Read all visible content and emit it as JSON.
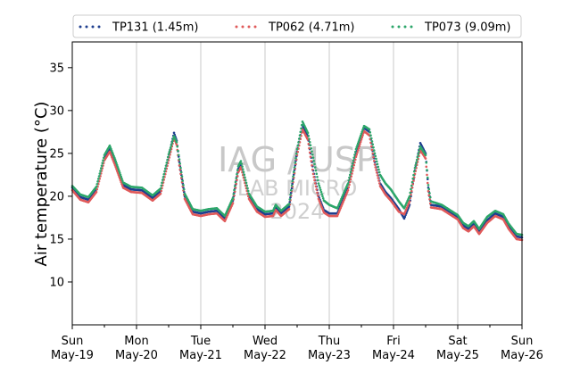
{
  "chart_data": {
    "type": "scatter",
    "title": "",
    "xlabel": "",
    "ylabel": "Air temperature (°C)",
    "ylim": [
      5,
      38
    ],
    "xlim": [
      "2024-05-19",
      "2024-05-26"
    ],
    "grid": "vertical at day boundaries",
    "legend_placement": "top",
    "watermark": [
      "IAG / USP",
      "LAB MICRO",
      "2024"
    ],
    "x_ticks": [
      {
        "date": "2024-05-19",
        "day": "Sun",
        "date_label": "May-19"
      },
      {
        "date": "2024-05-20",
        "day": "Mon",
        "date_label": "May-20"
      },
      {
        "date": "2024-05-21",
        "day": "Tue",
        "date_label": "May-21"
      },
      {
        "date": "2024-05-22",
        "day": "Wed",
        "date_label": "May-22"
      },
      {
        "date": "2024-05-23",
        "day": "Thu",
        "date_label": "May-23"
      },
      {
        "date": "2024-05-24",
        "day": "Fri",
        "date_label": "May-24"
      },
      {
        "date": "2024-05-25",
        "day": "Sat",
        "date_label": "May-25"
      },
      {
        "date": "2024-05-26",
        "day": "Sun",
        "date_label": "May-26"
      }
    ],
    "y_ticks": [
      10,
      15,
      20,
      25,
      30,
      35
    ],
    "series": [
      {
        "name": "TP131 (1.45m)",
        "color": "#1f3f8f",
        "points": [
          [
            "2024-05-19 00:00",
            21.0
          ],
          [
            "2024-05-19 03:00",
            19.9
          ],
          [
            "2024-05-19 06:00",
            19.6
          ],
          [
            "2024-05-19 09:00",
            20.8
          ],
          [
            "2024-05-19 12:00",
            24.5
          ],
          [
            "2024-05-19 14:00",
            25.6
          ],
          [
            "2024-05-19 16:00",
            24.0
          ],
          [
            "2024-05-19 19:00",
            21.3
          ],
          [
            "2024-05-19 22:00",
            20.8
          ],
          [
            "2024-05-20 02:00",
            20.7
          ],
          [
            "2024-05-20 06:00",
            19.8
          ],
          [
            "2024-05-20 09:00",
            20.6
          ],
          [
            "2024-05-20 12:00",
            24.6
          ],
          [
            "2024-05-20 14:00",
            27.4
          ],
          [
            "2024-05-20 15:00",
            26.5
          ],
          [
            "2024-05-20 16:00",
            24.0
          ],
          [
            "2024-05-20 18:00",
            20.0
          ],
          [
            "2024-05-20 21:00",
            18.2
          ],
          [
            "2024-05-21 00:00",
            18.0
          ],
          [
            "2024-05-21 03:00",
            18.2
          ],
          [
            "2024-05-21 06:00",
            18.3
          ],
          [
            "2024-05-21 09:00",
            17.4
          ],
          [
            "2024-05-21 12:00",
            19.5
          ],
          [
            "2024-05-21 14:00",
            23.2
          ],
          [
            "2024-05-21 15:00",
            23.8
          ],
          [
            "2024-05-21 18:00",
            20.0
          ],
          [
            "2024-05-21 21:00",
            18.5
          ],
          [
            "2024-05-22 00:00",
            17.9
          ],
          [
            "2024-05-22 03:00",
            18.0
          ],
          [
            "2024-05-22 04:00",
            18.7
          ],
          [
            "2024-05-22 06:00",
            18.0
          ],
          [
            "2024-05-22 09:00",
            18.8
          ],
          [
            "2024-05-22 12:00",
            25.2
          ],
          [
            "2024-05-22 14:00",
            28.3
          ],
          [
            "2024-05-22 16:00",
            27.0
          ],
          [
            "2024-05-22 18:00",
            23.0
          ],
          [
            "2024-05-22 20:00",
            20.0
          ],
          [
            "2024-05-22 22:00",
            18.4
          ],
          [
            "2024-05-23 00:00",
            18.0
          ],
          [
            "2024-05-23 03:00",
            18.0
          ],
          [
            "2024-05-23 07:00",
            21.0
          ],
          [
            "2024-05-23 10:00",
            25.0
          ],
          [
            "2024-05-23 13:00",
            28.0
          ],
          [
            "2024-05-23 15:00",
            27.5
          ],
          [
            "2024-05-23 17:00",
            24.0
          ],
          [
            "2024-05-23 19:00",
            21.5
          ],
          [
            "2024-05-23 21:00",
            20.5
          ],
          [
            "2024-05-23 23:00",
            19.8
          ],
          [
            "2024-05-24 02:00",
            18.5
          ],
          [
            "2024-05-24 04:00",
            17.4
          ],
          [
            "2024-05-24 06:00",
            19.0
          ],
          [
            "2024-05-24 08:00",
            23.0
          ],
          [
            "2024-05-24 10:00",
            26.2
          ],
          [
            "2024-05-24 12:00",
            25.0
          ],
          [
            "2024-05-24 13:00",
            21.0
          ],
          [
            "2024-05-24 14:00",
            19.0
          ],
          [
            "2024-05-24 18:00",
            18.8
          ],
          [
            "2024-05-24 21:00",
            18.2
          ],
          [
            "2024-05-25 00:00",
            17.6
          ],
          [
            "2024-05-25 02:00",
            16.6
          ],
          [
            "2024-05-25 04:00",
            16.2
          ],
          [
            "2024-05-25 06:00",
            16.8
          ],
          [
            "2024-05-25 08:00",
            15.8
          ],
          [
            "2024-05-25 11:00",
            17.2
          ],
          [
            "2024-05-25 14:00",
            18.0
          ],
          [
            "2024-05-25 17:00",
            17.6
          ],
          [
            "2024-05-25 19:00",
            16.5
          ],
          [
            "2024-05-25 22:00",
            15.3
          ],
          [
            "2024-05-26 00:00",
            15.2
          ]
        ]
      },
      {
        "name": "TP062 (4.71m)",
        "color": "#e05a5a",
        "points": [
          [
            "2024-05-19 00:00",
            20.7
          ],
          [
            "2024-05-19 03:00",
            19.6
          ],
          [
            "2024-05-19 06:00",
            19.3
          ],
          [
            "2024-05-19 09:00",
            20.5
          ],
          [
            "2024-05-19 12:00",
            24.2
          ],
          [
            "2024-05-19 14:00",
            25.2
          ],
          [
            "2024-05-19 16:00",
            23.6
          ],
          [
            "2024-05-19 19:00",
            21.0
          ],
          [
            "2024-05-19 22:00",
            20.5
          ],
          [
            "2024-05-20 02:00",
            20.4
          ],
          [
            "2024-05-20 06:00",
            19.5
          ],
          [
            "2024-05-20 09:00",
            20.3
          ],
          [
            "2024-05-20 12:00",
            24.2
          ],
          [
            "2024-05-20 14:00",
            26.8
          ],
          [
            "2024-05-20 15:00",
            26.0
          ],
          [
            "2024-05-20 16:00",
            23.6
          ],
          [
            "2024-05-20 18:00",
            19.7
          ],
          [
            "2024-05-20 21:00",
            17.9
          ],
          [
            "2024-05-21 00:00",
            17.7
          ],
          [
            "2024-05-21 03:00",
            17.9
          ],
          [
            "2024-05-21 06:00",
            18.0
          ],
          [
            "2024-05-21 09:00",
            17.1
          ],
          [
            "2024-05-21 12:00",
            19.2
          ],
          [
            "2024-05-21 14:00",
            22.8
          ],
          [
            "2024-05-21 15:00",
            23.4
          ],
          [
            "2024-05-21 18:00",
            19.7
          ],
          [
            "2024-05-21 21:00",
            18.2
          ],
          [
            "2024-05-22 00:00",
            17.6
          ],
          [
            "2024-05-22 03:00",
            17.7
          ],
          [
            "2024-05-22 04:00",
            18.4
          ],
          [
            "2024-05-22 06:00",
            17.7
          ],
          [
            "2024-05-22 09:00",
            18.5
          ],
          [
            "2024-05-22 12:00",
            24.8
          ],
          [
            "2024-05-22 14:00",
            27.8
          ],
          [
            "2024-05-22 16:00",
            26.6
          ],
          [
            "2024-05-22 18:00",
            22.6
          ],
          [
            "2024-05-22 20:00",
            19.7
          ],
          [
            "2024-05-22 22:00",
            18.1
          ],
          [
            "2024-05-23 00:00",
            17.7
          ],
          [
            "2024-05-23 03:00",
            17.7
          ],
          [
            "2024-05-23 07:00",
            20.7
          ],
          [
            "2024-05-23 10:00",
            24.6
          ],
          [
            "2024-05-23 13:00",
            27.6
          ],
          [
            "2024-05-23 15:00",
            27.1
          ],
          [
            "2024-05-23 17:00",
            23.7
          ],
          [
            "2024-05-23 19:00",
            21.2
          ],
          [
            "2024-05-23 21:00",
            20.2
          ],
          [
            "2024-05-23 23:00",
            19.5
          ],
          [
            "2024-05-24 02:00",
            18.2
          ],
          [
            "2024-05-24 04:00",
            17.9
          ],
          [
            "2024-05-24 06:00",
            19.4
          ],
          [
            "2024-05-24 08:00",
            22.6
          ],
          [
            "2024-05-24 10:00",
            25.4
          ],
          [
            "2024-05-24 12:00",
            24.4
          ],
          [
            "2024-05-24 13:00",
            20.6
          ],
          [
            "2024-05-24 14:00",
            18.7
          ],
          [
            "2024-05-24 18:00",
            18.5
          ],
          [
            "2024-05-24 21:00",
            17.9
          ],
          [
            "2024-05-25 00:00",
            17.3
          ],
          [
            "2024-05-25 02:00",
            16.3
          ],
          [
            "2024-05-25 04:00",
            15.9
          ],
          [
            "2024-05-25 06:00",
            16.5
          ],
          [
            "2024-05-25 08:00",
            15.6
          ],
          [
            "2024-05-25 11:00",
            16.9
          ],
          [
            "2024-05-25 14:00",
            17.7
          ],
          [
            "2024-05-25 17:00",
            17.3
          ],
          [
            "2024-05-25 19:00",
            16.2
          ],
          [
            "2024-05-25 22:00",
            15.0
          ],
          [
            "2024-05-26 00:00",
            14.9
          ]
        ]
      },
      {
        "name": "TP073 (9.09m)",
        "color": "#2ca66a",
        "points": [
          [
            "2024-05-19 00:00",
            21.2
          ],
          [
            "2024-05-19 03:00",
            20.2
          ],
          [
            "2024-05-19 06:00",
            19.9
          ],
          [
            "2024-05-19 09:00",
            21.1
          ],
          [
            "2024-05-19 12:00",
            24.8
          ],
          [
            "2024-05-19 14:00",
            25.9
          ],
          [
            "2024-05-19 16:00",
            24.3
          ],
          [
            "2024-05-19 19:00",
            21.6
          ],
          [
            "2024-05-19 22:00",
            21.1
          ],
          [
            "2024-05-20 02:00",
            21.0
          ],
          [
            "2024-05-20 06:00",
            20.1
          ],
          [
            "2024-05-20 09:00",
            20.9
          ],
          [
            "2024-05-20 12:00",
            24.9
          ],
          [
            "2024-05-20 14:00",
            27.0
          ],
          [
            "2024-05-20 15:00",
            26.3
          ],
          [
            "2024-05-20 16:00",
            24.3
          ],
          [
            "2024-05-20 18:00",
            20.3
          ],
          [
            "2024-05-20 21:00",
            18.5
          ],
          [
            "2024-05-21 00:00",
            18.3
          ],
          [
            "2024-05-21 03:00",
            18.5
          ],
          [
            "2024-05-21 06:00",
            18.6
          ],
          [
            "2024-05-21 09:00",
            17.7
          ],
          [
            "2024-05-21 12:00",
            19.8
          ],
          [
            "2024-05-21 14:00",
            23.5
          ],
          [
            "2024-05-21 15:00",
            24.1
          ],
          [
            "2024-05-21 18:00",
            20.3
          ],
          [
            "2024-05-21 21:00",
            18.8
          ],
          [
            "2024-05-22 00:00",
            18.2
          ],
          [
            "2024-05-22 03:00",
            18.3
          ],
          [
            "2024-05-22 04:00",
            19.0
          ],
          [
            "2024-05-22 06:00",
            18.3
          ],
          [
            "2024-05-22 09:00",
            19.1
          ],
          [
            "2024-05-22 12:00",
            25.5
          ],
          [
            "2024-05-22 14:00",
            28.7
          ],
          [
            "2024-05-22 16:00",
            27.4
          ],
          [
            "2024-05-22 18:00",
            24.5
          ],
          [
            "2024-05-22 20:00",
            21.5
          ],
          [
            "2024-05-22 22:00",
            19.5
          ],
          [
            "2024-05-23 00:00",
            19.0
          ],
          [
            "2024-05-23 03:00",
            18.6
          ],
          [
            "2024-05-23 07:00",
            21.5
          ],
          [
            "2024-05-23 10:00",
            25.5
          ],
          [
            "2024-05-23 13:00",
            28.2
          ],
          [
            "2024-05-23 15:00",
            27.8
          ],
          [
            "2024-05-23 17:00",
            25.0
          ],
          [
            "2024-05-23 19:00",
            22.5
          ],
          [
            "2024-05-23 21:00",
            21.5
          ],
          [
            "2024-05-23 23:00",
            20.8
          ],
          [
            "2024-05-24 02:00",
            19.4
          ],
          [
            "2024-05-24 04:00",
            18.6
          ],
          [
            "2024-05-24 06:00",
            20.0
          ],
          [
            "2024-05-24 08:00",
            23.3
          ],
          [
            "2024-05-24 10:00",
            25.8
          ],
          [
            "2024-05-24 12:00",
            24.8
          ],
          [
            "2024-05-24 13:00",
            21.3
          ],
          [
            "2024-05-24 14:00",
            19.4
          ],
          [
            "2024-05-24 18:00",
            19.0
          ],
          [
            "2024-05-24 21:00",
            18.4
          ],
          [
            "2024-05-25 00:00",
            17.8
          ],
          [
            "2024-05-25 02:00",
            16.9
          ],
          [
            "2024-05-25 04:00",
            16.5
          ],
          [
            "2024-05-25 06:00",
            17.1
          ],
          [
            "2024-05-25 08:00",
            16.2
          ],
          [
            "2024-05-25 11:00",
            17.6
          ],
          [
            "2024-05-25 14:00",
            18.3
          ],
          [
            "2024-05-25 17:00",
            17.9
          ],
          [
            "2024-05-25 19:00",
            16.8
          ],
          [
            "2024-05-25 22:00",
            15.6
          ],
          [
            "2024-05-26 00:00",
            15.5
          ]
        ]
      }
    ]
  }
}
